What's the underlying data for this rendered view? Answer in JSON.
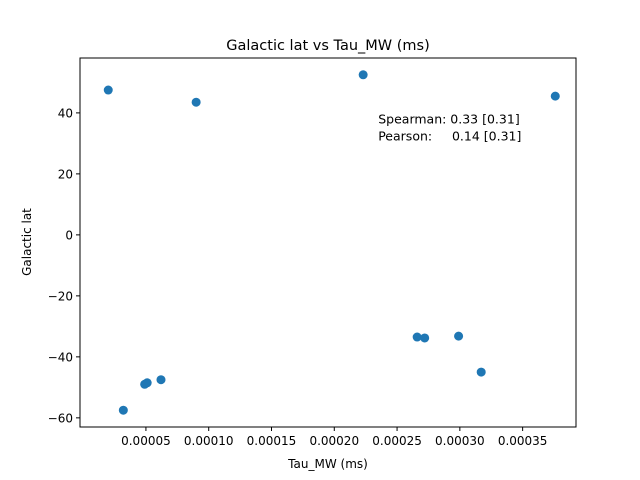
{
  "chart_data": {
    "type": "scatter",
    "title": "Galactic lat vs Tau_MW (ms)",
    "xlabel": "Tau_MW (ms)",
    "ylabel": "Galactic lat",
    "xlim": [
      -2.5e-06,
      0.0003925
    ],
    "ylim": [
      -63,
      58
    ],
    "x_ticks": [
      5e-05,
      0.0001,
      0.00015,
      0.0002,
      0.00025,
      0.0003,
      0.00035
    ],
    "x_tick_labels": [
      "0.00005",
      "0.00010",
      "0.00015",
      "0.00020",
      "0.00025",
      "0.00030",
      "0.00035"
    ],
    "y_ticks": [
      -60,
      -40,
      -20,
      0,
      20,
      40
    ],
    "y_tick_labels": [
      "−60",
      "−40",
      "−20",
      "0",
      "20",
      "40"
    ],
    "grid": false,
    "marker_color": "#1f77b4",
    "series": [
      {
        "x": [
          2e-05,
          3.2e-05,
          4.9e-05,
          5.1e-05,
          6.2e-05,
          9e-05,
          0.000223,
          0.000266,
          0.000272,
          0.000299,
          0.000317,
          0.000376
        ],
        "y": [
          47.5,
          -57.5,
          -49.0,
          -48.5,
          -47.5,
          43.5,
          52.5,
          -33.5,
          -33.8,
          -33.2,
          -45.0,
          45.5
        ]
      }
    ],
    "annotations": [
      {
        "text": "Spearman: 0.33 [0.31]",
        "x": 0.000235,
        "y": 36.5
      },
      {
        "text": "Pearson:     0.14 [0.31]",
        "x": 0.000235,
        "y": 31.0
      }
    ]
  }
}
